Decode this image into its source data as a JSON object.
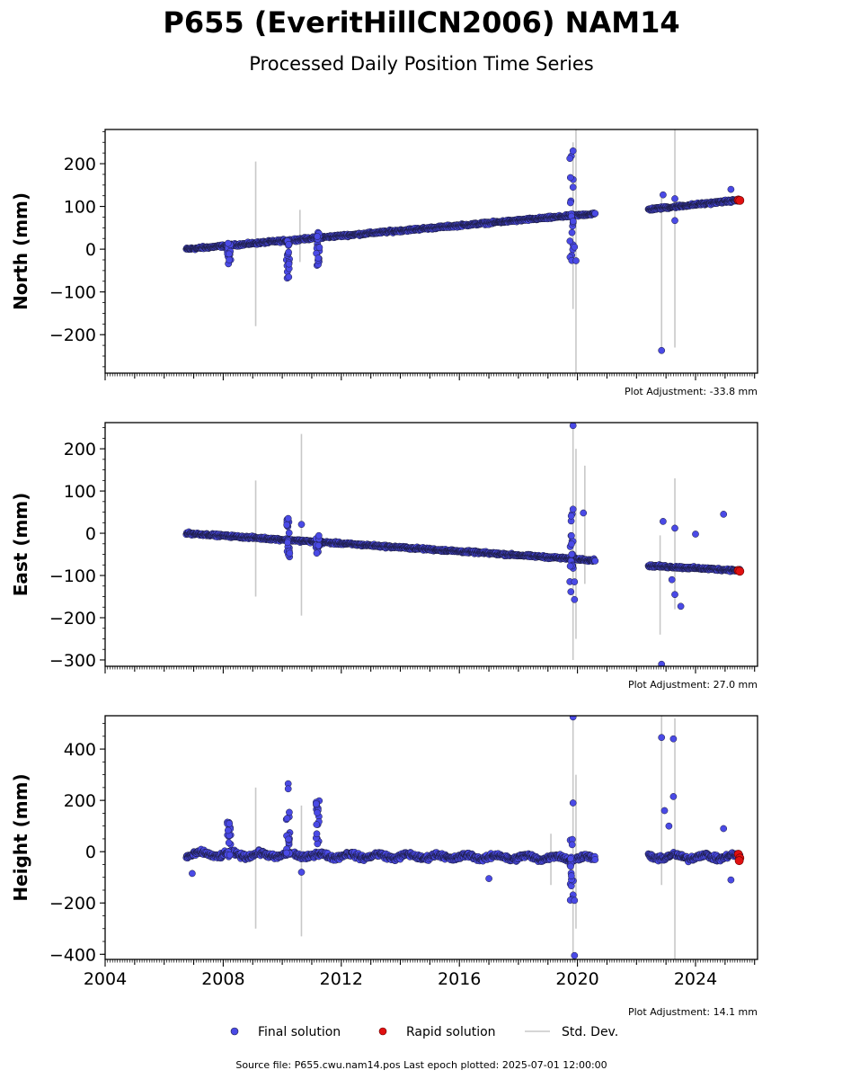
{
  "header": {
    "title": "P655 (EveritHillCN2006) NAM14",
    "subtitle": "Processed Daily Position Time Series"
  },
  "footer": {
    "source": "Source file: P655.cwu.nam14.pos  Last epoch plotted: 2025-07-01 12:00:00"
  },
  "legend": {
    "final": "Final solution",
    "rapid": "Rapid solution",
    "std": "Std. Dev."
  },
  "colors": {
    "final": "#4a4ae6",
    "final_edge": "#1a1a3a",
    "rapid": "#e01010",
    "std": "#c8c8c8"
  },
  "chart_data": [
    {
      "type": "scatter",
      "name": "north",
      "ylabel": "North (mm)",
      "adjustment": "Plot Adjustment: -33.8 mm",
      "xlim": [
        2004.0,
        2026.1
      ],
      "ylim": [
        -290,
        280
      ],
      "yticks": [
        200,
        100,
        0,
        -100,
        -200
      ],
      "ytick_labels": [
        "200",
        "100",
        "0",
        "−100",
        "−200"
      ],
      "trend": {
        "start": [
          2006.75,
          0
        ],
        "end": [
          2020.6,
          83
        ]
      },
      "trend2": {
        "start": [
          2022.4,
          93
        ],
        "end": [
          2025.5,
          115
        ]
      },
      "excursions": [
        {
          "x": 2008.2,
          "lo": -38,
          "hi": 14
        },
        {
          "x": 2010.2,
          "lo": -85,
          "hi": 22
        },
        {
          "x": 2011.2,
          "lo": -40,
          "hi": 45
        },
        {
          "x": 2019.8,
          "lo": -30,
          "hi": 230
        }
      ],
      "outliers": [
        [
          2019.85,
          230
        ],
        [
          2019.85,
          145
        ],
        [
          2019.9,
          5
        ],
        [
          2019.95,
          -27
        ],
        [
          2022.85,
          -237
        ],
        [
          2022.9,
          127
        ],
        [
          2023.3,
          67
        ],
        [
          2023.3,
          118
        ],
        [
          2025.2,
          140
        ]
      ],
      "std_bars": [
        [
          2009.1,
          -180,
          205
        ],
        [
          2010.6,
          -30,
          92
        ],
        [
          2019.85,
          -140,
          250
        ],
        [
          2019.95,
          -290,
          280
        ],
        [
          2022.85,
          -240,
          120
        ],
        [
          2023.3,
          -230,
          280
        ]
      ],
      "rapid": [
        [
          2025.45,
          115
        ],
        [
          2025.5,
          114
        ]
      ]
    },
    {
      "type": "scatter",
      "name": "east",
      "ylabel": "East (mm)",
      "adjustment": "Plot Adjustment: 27.0 mm",
      "xlim": [
        2004.0,
        2026.1
      ],
      "ylim": [
        -315,
        262
      ],
      "yticks": [
        200,
        100,
        0,
        -100,
        -200,
        -300
      ],
      "ytick_labels": [
        "200",
        "100",
        "0",
        "−100",
        "−200",
        "−300"
      ],
      "trend": {
        "start": [
          2006.75,
          0
        ],
        "end": [
          2020.6,
          -64
        ]
      },
      "trend2": {
        "start": [
          2022.4,
          -77
        ],
        "end": [
          2025.5,
          -88
        ]
      },
      "excursions": [
        {
          "x": 2010.2,
          "lo": -65,
          "hi": 35
        },
        {
          "x": 2011.2,
          "lo": -50,
          "hi": -2
        },
        {
          "x": 2019.8,
          "lo": -160,
          "hi": 55
        }
      ],
      "outliers": [
        [
          2019.85,
          255
        ],
        [
          2019.85,
          57
        ],
        [
          2019.9,
          -115
        ],
        [
          2019.9,
          -157
        ],
        [
          2020.2,
          48
        ],
        [
          2010.2,
          35
        ],
        [
          2010.65,
          21
        ],
        [
          2022.9,
          28
        ],
        [
          2022.85,
          -310
        ],
        [
          2023.3,
          12
        ],
        [
          2023.3,
          -145
        ],
        [
          2023.5,
          -173
        ],
        [
          2024.0,
          -2
        ],
        [
          2024.95,
          45
        ],
        [
          2023.2,
          -110
        ]
      ],
      "std_bars": [
        [
          2009.1,
          -150,
          125
        ],
        [
          2010.65,
          -195,
          235
        ],
        [
          2019.85,
          -300,
          262
        ],
        [
          2019.95,
          -250,
          200
        ],
        [
          2020.25,
          -120,
          160
        ],
        [
          2022.8,
          -240,
          -5
        ],
        [
          2023.3,
          -180,
          130
        ]
      ],
      "rapid": [
        [
          2025.45,
          -88
        ],
        [
          2025.5,
          -90
        ]
      ]
    },
    {
      "type": "scatter",
      "name": "height",
      "ylabel": "Height (mm)",
      "adjustment": "Plot Adjustment: 14.1 mm",
      "xlim": [
        2004.0,
        2026.1
      ],
      "ylim": [
        -420,
        530
      ],
      "yticks": [
        400,
        200,
        0,
        -200,
        -400
      ],
      "ytick_labels": [
        "400",
        "200",
        "0",
        "−200",
        "−400"
      ],
      "xticks": [
        2004,
        2008,
        2012,
        2016,
        2020,
        2024
      ],
      "xtick_labels": [
        "2004",
        "2008",
        "2012",
        "2016",
        "2020",
        "2024"
      ],
      "trend": {
        "start": [
          2006.75,
          -10
        ],
        "end": [
          2020.6,
          -25
        ]
      },
      "trend2": {
        "start": [
          2022.4,
          -20
        ],
        "end": [
          2025.5,
          -20
        ]
      },
      "excursions": [
        {
          "x": 2008.2,
          "lo": -20,
          "hi": 140
        },
        {
          "x": 2010.2,
          "lo": -30,
          "hi": 160
        },
        {
          "x": 2011.2,
          "lo": -20,
          "hi": 205
        },
        {
          "x": 2019.8,
          "lo": -200,
          "hi": 60
        }
      ],
      "outliers": [
        [
          2010.2,
          265
        ],
        [
          2010.2,
          245
        ],
        [
          2006.95,
          -85
        ],
        [
          2010.65,
          -80
        ],
        [
          2017.0,
          -105
        ],
        [
          2019.85,
          525
        ],
        [
          2019.85,
          190
        ],
        [
          2019.9,
          -190
        ],
        [
          2019.9,
          -405
        ],
        [
          2022.85,
          445
        ],
        [
          2022.95,
          160
        ],
        [
          2023.25,
          440
        ],
        [
          2023.25,
          215
        ],
        [
          2023.1,
          100
        ],
        [
          2024.95,
          90
        ],
        [
          2025.2,
          -110
        ]
      ],
      "std_bars": [
        [
          2009.1,
          -300,
          250
        ],
        [
          2010.65,
          -330,
          180
        ],
        [
          2019.85,
          -420,
          520
        ],
        [
          2019.95,
          -300,
          300
        ],
        [
          2022.85,
          -130,
          530
        ],
        [
          2023.3,
          -420,
          520
        ],
        [
          2019.1,
          -130,
          70
        ]
      ],
      "rapid": [
        [
          2025.45,
          -10
        ],
        [
          2025.5,
          -25
        ],
        [
          2025.48,
          -35
        ]
      ]
    }
  ]
}
